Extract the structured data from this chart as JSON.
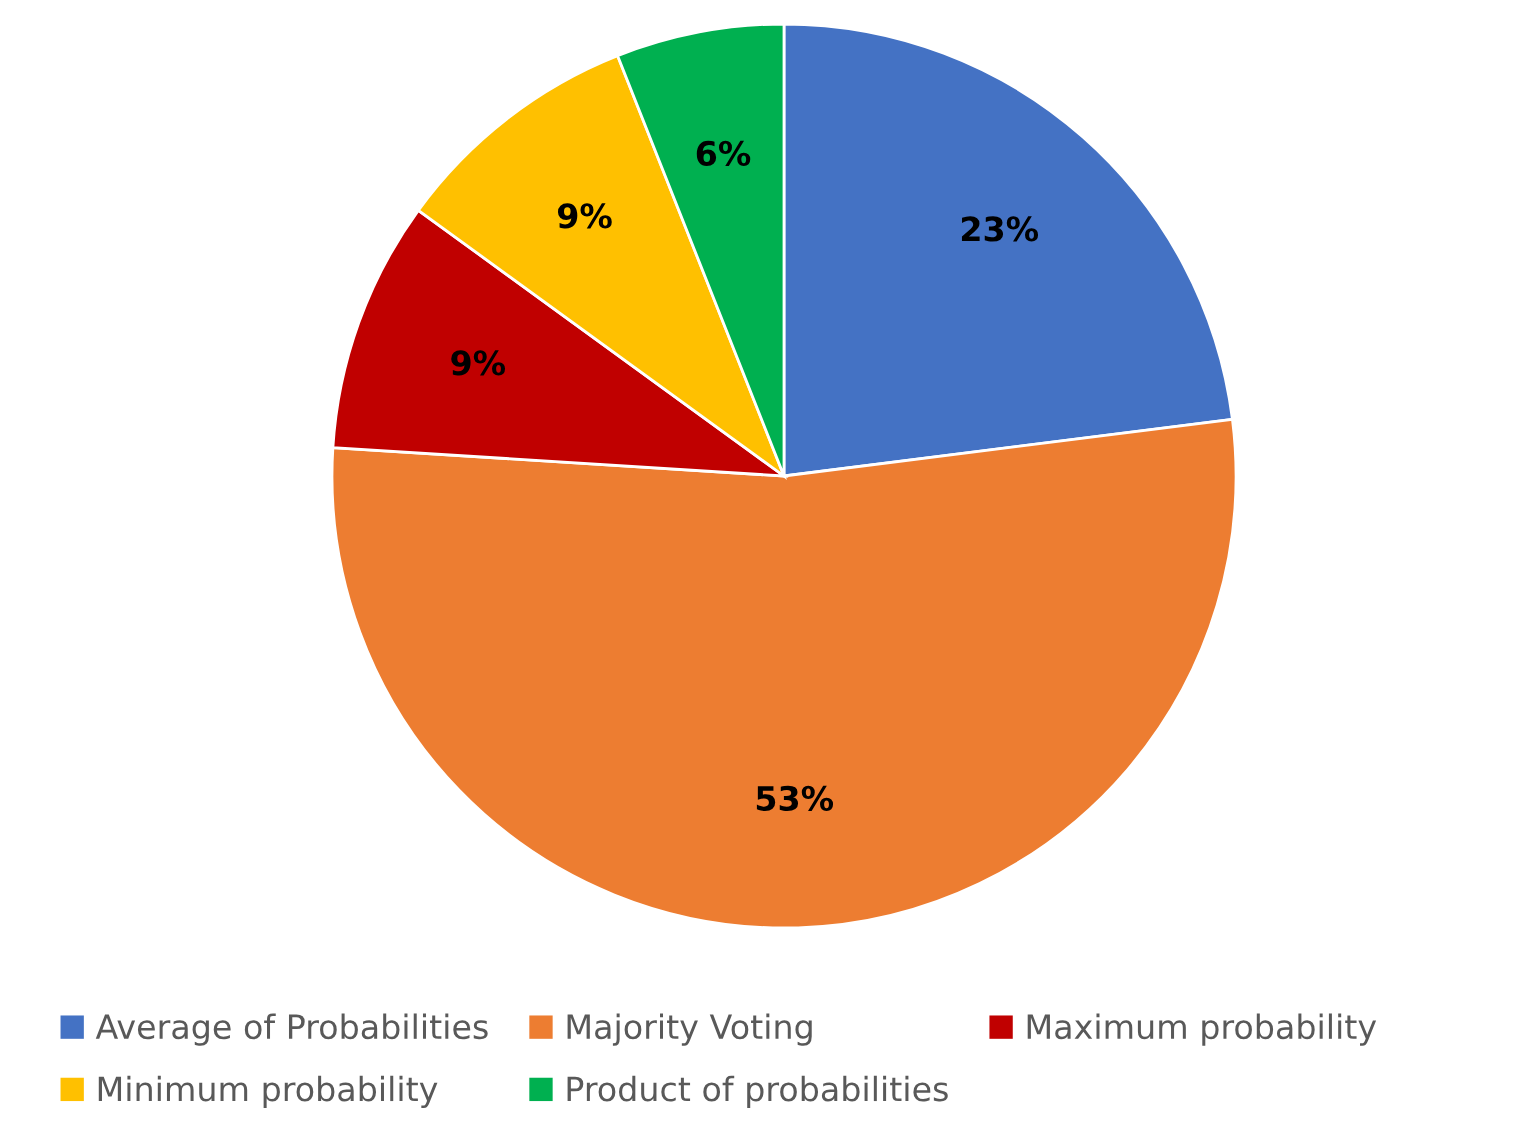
{
  "chart_data": {
    "type": "pie",
    "categories": [
      "Average of Probabilities",
      "Majority Voting",
      "Maximum probability",
      "Minimum probability",
      "Product of probabilities"
    ],
    "values": [
      23,
      53,
      9,
      9,
      6
    ],
    "colors": [
      "#4472c4",
      "#ed7d31",
      "#c00000",
      "#ffc000",
      "#00b050"
    ],
    "value_labels": [
      "23%",
      "53%",
      "9%",
      "9%",
      "6%"
    ],
    "legend": "bottom"
  }
}
